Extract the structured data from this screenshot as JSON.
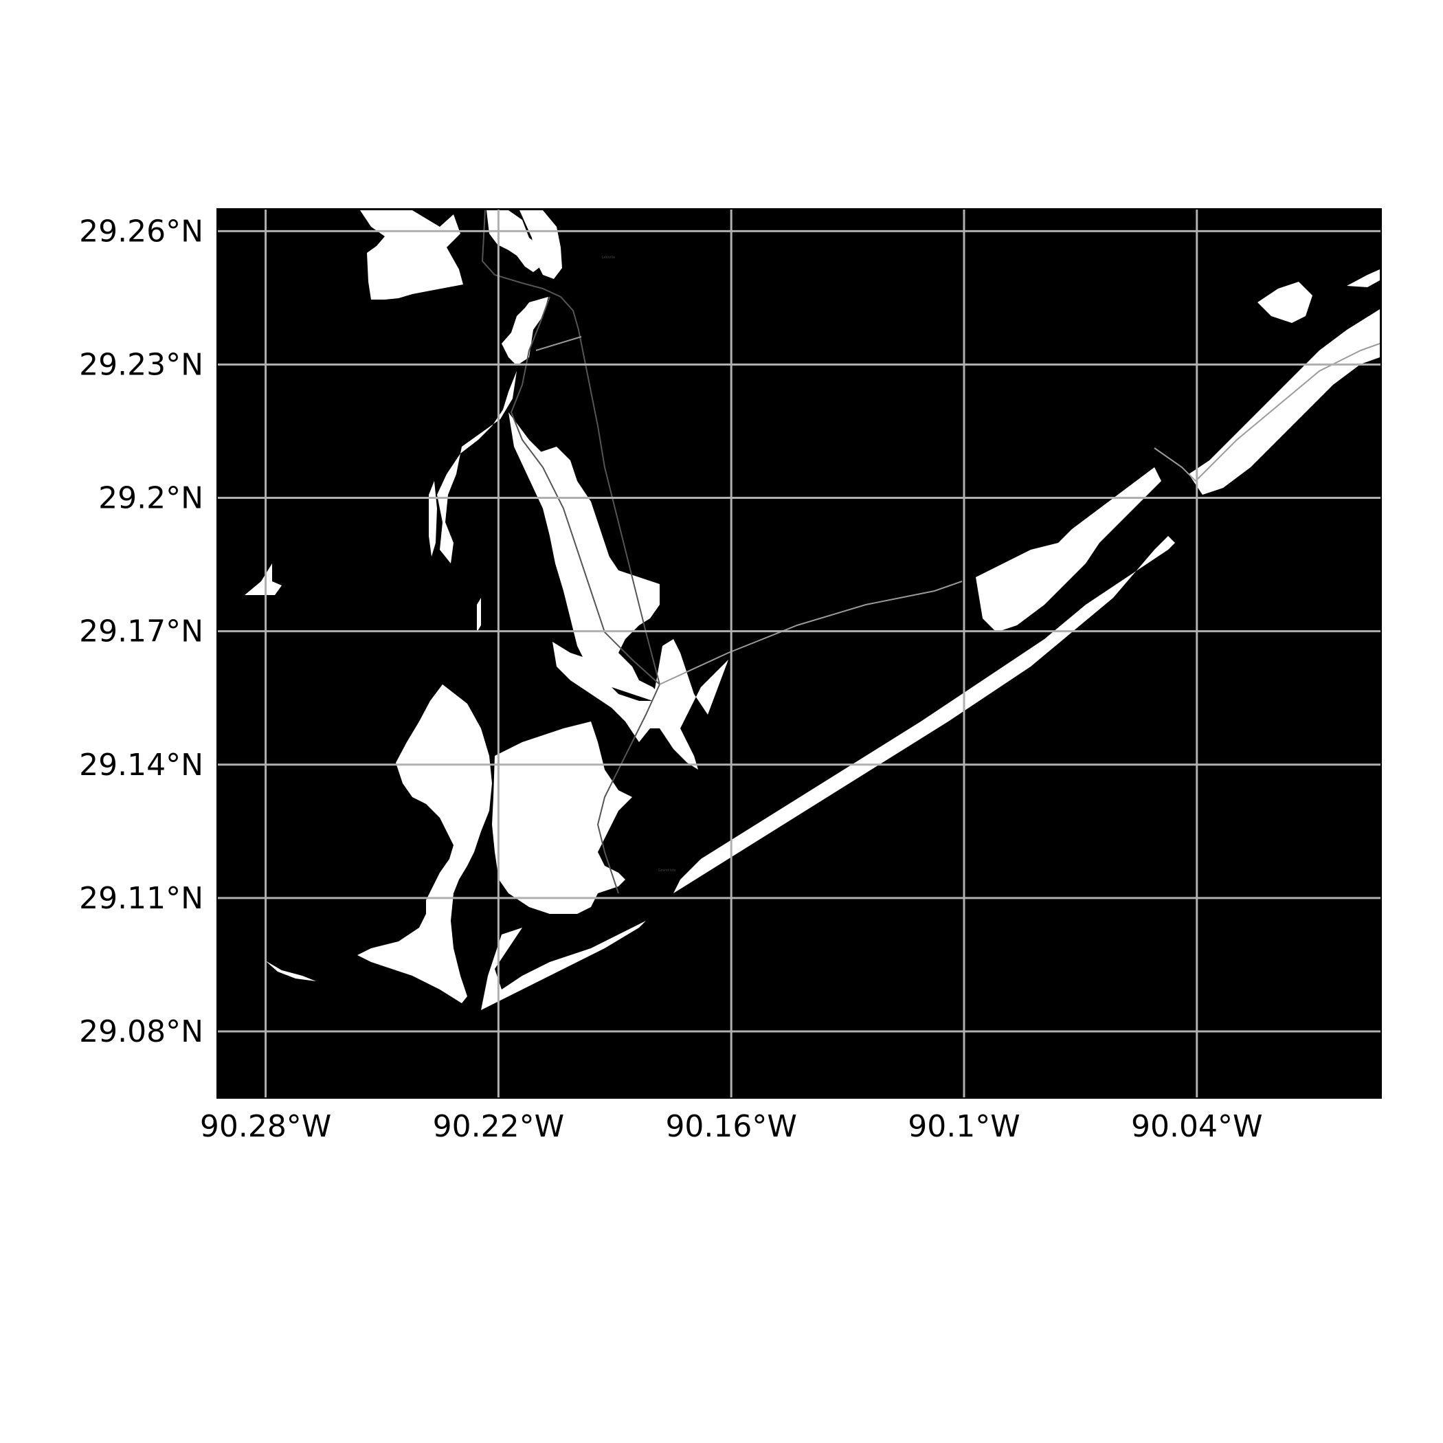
{
  "map": {
    "background_color": "#000000",
    "land_color": "#ffffff",
    "grid_color": "#b0b0b0",
    "x_range": [
      -90.2925,
      -89.9925
    ],
    "y_range": [
      29.065,
      29.265
    ],
    "x_ticks": [
      {
        "value": -90.28,
        "label": "90.28°W"
      },
      {
        "value": -90.22,
        "label": "90.22°W"
      },
      {
        "value": -90.16,
        "label": "90.16°W"
      },
      {
        "value": -90.1,
        "label": "90.1°W"
      },
      {
        "value": -90.04,
        "label": "90.04°W"
      }
    ],
    "y_ticks": [
      {
        "value": 29.26,
        "label": "29.26°N"
      },
      {
        "value": 29.23,
        "label": "29.23°N"
      },
      {
        "value": 29.2,
        "label": "29.2°N"
      },
      {
        "value": 29.17,
        "label": "29.17°N"
      },
      {
        "value": 29.14,
        "label": "29.14°N"
      },
      {
        "value": 29.11,
        "label": "29.11°N"
      },
      {
        "value": 29.08,
        "label": "29.08°N"
      }
    ],
    "grid": true
  }
}
